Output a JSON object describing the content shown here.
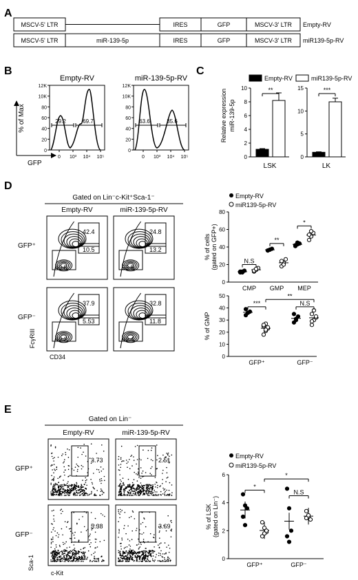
{
  "panels": {
    "A": "A",
    "B": "B",
    "C": "C",
    "D": "D",
    "E": "E"
  },
  "constructs": [
    {
      "name": "Empty-RV",
      "boxes": [
        "MSCV-5' LTR",
        "",
        "IRES",
        "GFP",
        "MSCV-3' LTR"
      ]
    },
    {
      "name": "miR139-5p-RV",
      "boxes": [
        "MSCV-5' LTR",
        "miR-139-5p",
        "IRES",
        "GFP",
        "MSCV-3' LTR"
      ]
    }
  ],
  "panelB": {
    "titles": [
      "Empty-RV",
      "miR-139-5p-RV"
    ],
    "ylabel": "% of Max",
    "xlabel": "GFP",
    "yticks": [
      "0",
      "20",
      "40",
      "60",
      "80",
      "10K",
      "12K"
    ],
    "yticks_right": [
      "0",
      "20",
      "40",
      "60",
      "80",
      "10K",
      "12K"
    ],
    "xticks": [
      "0",
      "10³",
      "10⁴",
      "10⁵"
    ],
    "gates": [
      [
        "29.2",
        "69.7"
      ],
      [
        "63.6",
        "35.6"
      ]
    ]
  },
  "panelC": {
    "legend": [
      "Empty-RV",
      "miR139-5p-RV"
    ],
    "ylabel": "Relative expression miR-139-5p",
    "chart_data": [
      {
        "type": "bar",
        "categories": [
          "Empty-RV",
          "miR139-5p-RV"
        ],
        "values": [
          1.1,
          8.2
        ],
        "errors": [
          0.1,
          1.1
        ],
        "ylim": [
          0,
          10
        ],
        "yticks": [
          "0",
          "2",
          "4",
          "6",
          "8",
          "10"
        ],
        "xlabel": "LSK",
        "sig": "**"
      },
      {
        "type": "bar",
        "categories": [
          "Empty-RV",
          "miR139-5p-RV"
        ],
        "values": [
          1.0,
          12.0
        ],
        "errors": [
          0.1,
          0.8
        ],
        "ylim": [
          0,
          15
        ],
        "yticks": [
          "0",
          "5",
          "10",
          "15"
        ],
        "xlabel": "LK",
        "sig": "***"
      }
    ]
  },
  "panelD": {
    "header": "Gated on Lin⁻c-Kit⁺Sca-1⁻",
    "cols": [
      "Empty-RV",
      "miR-139-5p-RV"
    ],
    "rows": [
      "GFP⁺",
      "GFP⁻"
    ],
    "gates": [
      [
        [
          "42.4",
          "10.5",
          "40.8"
        ],
        [
          "24.8",
          "13.2",
          "55.9"
        ]
      ],
      [
        [
          "37.9",
          "5.53",
          "49.2"
        ],
        [
          "32.8",
          "11.8",
          "49.4"
        ]
      ]
    ],
    "ylabel": "FcγRIII",
    "xlabel": "CD34",
    "legend": [
      "Empty-RV",
      "miR139-5p-RV"
    ],
    "chart1": {
      "type": "scatter",
      "ylabel": "% of cells (gated on GFP+)",
      "categories": [
        "CMP",
        "GMP",
        "MEP"
      ],
      "yticks": [
        "0",
        "20",
        "40",
        "60",
        "80"
      ],
      "ylim": [
        0,
        80
      ],
      "series": [
        {
          "name": "Empty-RV",
          "values": [
            [
              11,
              12,
              13,
              12,
              11
            ],
            [
              36,
              37,
              38,
              36,
              37
            ],
            [
              41,
              43,
              44,
              42,
              45
            ]
          ]
        },
        {
          "name": "miR139-5p-RV",
          "values": [
            [
              12,
              14,
              16,
              13,
              15
            ],
            [
              18,
              22,
              26,
              24,
              20
            ],
            [
              48,
              52,
              56,
              54,
              58
            ]
          ]
        }
      ],
      "sig": [
        "N.S",
        "**",
        "*"
      ]
    },
    "chart2": {
      "type": "scatter",
      "ylabel": "% of GMP",
      "categories": [
        "GFP⁺",
        "GFP⁻"
      ],
      "yticks": [
        "0",
        "10",
        "20",
        "30",
        "40",
        "50"
      ],
      "ylim": [
        0,
        50
      ],
      "series": [
        {
          "name": "Empty-RV",
          "values": [
            [
              34,
              36,
              37,
              39,
              36
            ],
            [
              28,
              31,
              33,
              35,
              30
            ]
          ]
        },
        {
          "name": "miR139-5p-RV",
          "values": [
            [
              18,
              21,
              23,
              25,
              27,
              24,
              26,
              22
            ],
            [
              26,
              30,
              32,
              35,
              38,
              33,
              29
            ]
          ]
        }
      ],
      "sig": [
        "***",
        "N.S",
        "**"
      ]
    }
  },
  "panelE": {
    "header": "Gated on Lin⁻",
    "cols": [
      "Empty-RV",
      "miR-139-5p-RV"
    ],
    "rows": [
      "GFP⁺",
      "GFP⁻"
    ],
    "gates": [
      [
        "3.73",
        "2.51"
      ],
      [
        "5.38",
        "3.69"
      ]
    ],
    "ylabel": "Sca-1",
    "xlabel": "c-Kit",
    "legend": [
      "Empty-RV",
      "miR139-5p-RV"
    ],
    "chart": {
      "type": "scatter",
      "ylabel": "% of LSK (gated on Lin⁻)",
      "categories": [
        "GFP⁺",
        "GFP⁻"
      ],
      "yticks": [
        "0",
        "2",
        "4",
        "6"
      ],
      "ylim": [
        0,
        6
      ],
      "series": [
        {
          "name": "Empty-RV",
          "values": [
            [
              4.6,
              3.8,
              3.6,
              3.0,
              2.4
            ],
            [
              5.0,
              3.6,
              2.0,
              1.6,
              1.2
            ]
          ]
        },
        {
          "name": "miR139-5p-RV",
          "values": [
            [
              2.6,
              2.2,
              1.9,
              1.6,
              1.8,
              2.0
            ],
            [
              3.4,
              3.0,
              2.8,
              2.9,
              3.1
            ]
          ]
        }
      ],
      "sig": [
        "*",
        "*",
        "N.S"
      ]
    }
  }
}
